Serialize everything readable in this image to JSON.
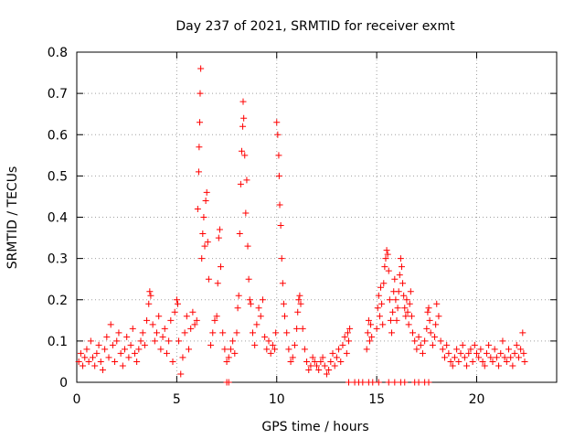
{
  "chart_data": {
    "type": "scatter",
    "title": "Day 237 of 2021, SRMTID for receiver exmt",
    "xlabel": "GPS time / hours",
    "ylabel": "SRMTID / TECUs",
    "xlim": [
      0,
      24
    ],
    "ylim": [
      0,
      0.8
    ],
    "x_ticks": [
      0,
      5,
      10,
      15,
      20
    ],
    "x_tick_labels": [
      "0",
      "5",
      "10",
      "15",
      "20"
    ],
    "y_ticks": [
      0,
      0.1,
      0.2,
      0.3,
      0.4,
      0.5,
      0.6,
      0.7,
      0.8
    ],
    "y_tick_labels": [
      "0",
      "0.1",
      "0.2",
      "0.3",
      "0.4",
      "0.5",
      "0.6",
      "0.7",
      "0.8"
    ],
    "grid": true,
    "marker": "+",
    "color": "#ff0000",
    "series": [
      {
        "name": "SRMTID",
        "points": [
          [
            0.1,
            0.05
          ],
          [
            0.2,
            0.07
          ],
          [
            0.3,
            0.04
          ],
          [
            0.4,
            0.06
          ],
          [
            0.5,
            0.08
          ],
          [
            0.6,
            0.05
          ],
          [
            0.7,
            0.1
          ],
          [
            0.8,
            0.06
          ],
          [
            0.9,
            0.04
          ],
          [
            1.0,
            0.07
          ],
          [
            1.1,
            0.09
          ],
          [
            1.2,
            0.05
          ],
          [
            1.3,
            0.03
          ],
          [
            1.4,
            0.08
          ],
          [
            1.5,
            0.11
          ],
          [
            1.6,
            0.06
          ],
          [
            1.7,
            0.14
          ],
          [
            1.8,
            0.09
          ],
          [
            1.9,
            0.05
          ],
          [
            2.0,
            0.1
          ],
          [
            2.1,
            0.12
          ],
          [
            2.2,
            0.07
          ],
          [
            2.3,
            0.04
          ],
          [
            2.4,
            0.08
          ],
          [
            2.5,
            0.11
          ],
          [
            2.6,
            0.06
          ],
          [
            2.7,
            0.09
          ],
          [
            2.8,
            0.13
          ],
          [
            2.9,
            0.07
          ],
          [
            3.0,
            0.05
          ],
          [
            3.1,
            0.08
          ],
          [
            3.2,
            0.1
          ],
          [
            3.3,
            0.12
          ],
          [
            3.4,
            0.09
          ],
          [
            3.5,
            0.15
          ],
          [
            3.6,
            0.19
          ],
          [
            3.65,
            0.22
          ],
          [
            3.7,
            0.21
          ],
          [
            3.8,
            0.14
          ],
          [
            3.9,
            0.1
          ],
          [
            4.0,
            0.12
          ],
          [
            4.1,
            0.16
          ],
          [
            4.2,
            0.08
          ],
          [
            4.3,
            0.11
          ],
          [
            4.4,
            0.13
          ],
          [
            4.5,
            0.07
          ],
          [
            4.6,
            0.1
          ],
          [
            4.7,
            0.15
          ],
          [
            4.8,
            0.05
          ],
          [
            4.9,
            0.17
          ],
          [
            5.0,
            0.2
          ],
          [
            5.05,
            0.19
          ],
          [
            5.1,
            0.1
          ],
          [
            5.2,
            0.02
          ],
          [
            5.3,
            0.06
          ],
          [
            5.4,
            0.12
          ],
          [
            5.5,
            0.16
          ],
          [
            5.6,
            0.08
          ],
          [
            5.7,
            0.13
          ],
          [
            5.8,
            0.17
          ],
          [
            5.9,
            0.14
          ],
          [
            6.0,
            0.15
          ],
          [
            6.05,
            0.42
          ],
          [
            6.1,
            0.51
          ],
          [
            6.12,
            0.57
          ],
          [
            6.15,
            0.63
          ],
          [
            6.17,
            0.7
          ],
          [
            6.2,
            0.76
          ],
          [
            6.25,
            0.3
          ],
          [
            6.3,
            0.36
          ],
          [
            6.35,
            0.4
          ],
          [
            6.4,
            0.33
          ],
          [
            6.45,
            0.44
          ],
          [
            6.5,
            0.46
          ],
          [
            6.55,
            0.34
          ],
          [
            6.6,
            0.25
          ],
          [
            6.7,
            0.09
          ],
          [
            6.8,
            0.12
          ],
          [
            6.9,
            0.15
          ],
          [
            7.0,
            0.16
          ],
          [
            7.05,
            0.24
          ],
          [
            7.1,
            0.35
          ],
          [
            7.15,
            0.37
          ],
          [
            7.2,
            0.28
          ],
          [
            7.3,
            0.12
          ],
          [
            7.4,
            0.08
          ],
          [
            7.5,
            0.05
          ],
          [
            7.6,
            0.06
          ],
          [
            7.7,
            0.08
          ],
          [
            7.8,
            0.1
          ],
          [
            7.9,
            0.07
          ],
          [
            8.0,
            0.12
          ],
          [
            8.05,
            0.18
          ],
          [
            8.1,
            0.21
          ],
          [
            8.15,
            0.36
          ],
          [
            8.2,
            0.48
          ],
          [
            8.25,
            0.56
          ],
          [
            8.3,
            0.62
          ],
          [
            8.32,
            0.68
          ],
          [
            8.35,
            0.64
          ],
          [
            8.4,
            0.55
          ],
          [
            8.45,
            0.41
          ],
          [
            8.5,
            0.49
          ],
          [
            8.55,
            0.33
          ],
          [
            8.6,
            0.25
          ],
          [
            8.65,
            0.2
          ],
          [
            8.7,
            0.19
          ],
          [
            8.8,
            0.12
          ],
          [
            8.9,
            0.09
          ],
          [
            9.0,
            0.14
          ],
          [
            9.1,
            0.18
          ],
          [
            9.2,
            0.16
          ],
          [
            9.3,
            0.2
          ],
          [
            9.4,
            0.11
          ],
          [
            9.5,
            0.08
          ],
          [
            9.6,
            0.1
          ],
          [
            9.7,
            0.07
          ],
          [
            9.8,
            0.09
          ],
          [
            9.9,
            0.08
          ],
          [
            9.95,
            0.12
          ],
          [
            10.0,
            0.63
          ],
          [
            10.05,
            0.6
          ],
          [
            10.1,
            0.55
          ],
          [
            10.12,
            0.5
          ],
          [
            10.15,
            0.43
          ],
          [
            10.2,
            0.38
          ],
          [
            10.25,
            0.3
          ],
          [
            10.3,
            0.24
          ],
          [
            10.35,
            0.19
          ],
          [
            10.4,
            0.16
          ],
          [
            10.5,
            0.12
          ],
          [
            10.6,
            0.08
          ],
          [
            10.7,
            0.05
          ],
          [
            10.8,
            0.06
          ],
          [
            10.9,
            0.09
          ],
          [
            11.0,
            0.13
          ],
          [
            11.05,
            0.17
          ],
          [
            11.1,
            0.2
          ],
          [
            11.15,
            0.21
          ],
          [
            11.2,
            0.19
          ],
          [
            11.3,
            0.13
          ],
          [
            11.4,
            0.08
          ],
          [
            11.5,
            0.05
          ],
          [
            11.6,
            0.03
          ],
          [
            11.7,
            0.04
          ],
          [
            11.8,
            0.06
          ],
          [
            11.9,
            0.05
          ],
          [
            12.0,
            0.04
          ],
          [
            12.1,
            0.03
          ],
          [
            12.2,
            0.05
          ],
          [
            12.3,
            0.06
          ],
          [
            12.4,
            0.04
          ],
          [
            12.5,
            0.02
          ],
          [
            12.6,
            0.03
          ],
          [
            12.7,
            0.05
          ],
          [
            12.8,
            0.07
          ],
          [
            12.9,
            0.04
          ],
          [
            13.0,
            0.06
          ],
          [
            13.1,
            0.08
          ],
          [
            13.2,
            0.05
          ],
          [
            13.3,
            0.09
          ],
          [
            13.4,
            0.11
          ],
          [
            13.5,
            0.07
          ],
          [
            13.55,
            0.12
          ],
          [
            13.6,
            0.1
          ],
          [
            13.65,
            0.13
          ],
          [
            14.5,
            0.08
          ],
          [
            14.55,
            0.12
          ],
          [
            14.6,
            0.15
          ],
          [
            14.65,
            0.1
          ],
          [
            14.7,
            0.14
          ],
          [
            14.75,
            0.11
          ],
          [
            15.0,
            0.13
          ],
          [
            15.05,
            0.18
          ],
          [
            15.1,
            0.21
          ],
          [
            15.15,
            0.16
          ],
          [
            15.2,
            0.23
          ],
          [
            15.25,
            0.19
          ],
          [
            15.3,
            0.14
          ],
          [
            15.35,
            0.24
          ],
          [
            15.4,
            0.28
          ],
          [
            15.45,
            0.3
          ],
          [
            15.5,
            0.32
          ],
          [
            15.55,
            0.31
          ],
          [
            15.6,
            0.27
          ],
          [
            15.65,
            0.2
          ],
          [
            15.7,
            0.15
          ],
          [
            15.75,
            0.12
          ],
          [
            15.8,
            0.17
          ],
          [
            15.85,
            0.22
          ],
          [
            15.9,
            0.25
          ],
          [
            15.95,
            0.2
          ],
          [
            16.0,
            0.15
          ],
          [
            16.05,
            0.18
          ],
          [
            16.1,
            0.22
          ],
          [
            16.15,
            0.26
          ],
          [
            16.2,
            0.3
          ],
          [
            16.25,
            0.28
          ],
          [
            16.3,
            0.24
          ],
          [
            16.35,
            0.21
          ],
          [
            16.4,
            0.18
          ],
          [
            16.45,
            0.16
          ],
          [
            16.5,
            0.2
          ],
          [
            16.55,
            0.17
          ],
          [
            16.6,
            0.14
          ],
          [
            16.65,
            0.19
          ],
          [
            16.7,
            0.22
          ],
          [
            16.75,
            0.16
          ],
          [
            16.8,
            0.12
          ],
          [
            16.9,
            0.1
          ],
          [
            17.0,
            0.08
          ],
          [
            17.1,
            0.11
          ],
          [
            17.2,
            0.09
          ],
          [
            17.3,
            0.07
          ],
          [
            17.4,
            0.1
          ],
          [
            17.5,
            0.13
          ],
          [
            17.55,
            0.17
          ],
          [
            17.6,
            0.18
          ],
          [
            17.65,
            0.15
          ],
          [
            17.7,
            0.12
          ],
          [
            17.8,
            0.09
          ],
          [
            17.9,
            0.11
          ],
          [
            17.95,
            0.14
          ],
          [
            18.0,
            0.19
          ],
          [
            18.1,
            0.16
          ],
          [
            18.2,
            0.1
          ],
          [
            18.3,
            0.08
          ],
          [
            18.4,
            0.06
          ],
          [
            18.5,
            0.09
          ],
          [
            18.6,
            0.07
          ],
          [
            18.7,
            0.05
          ],
          [
            18.8,
            0.04
          ],
          [
            18.9,
            0.06
          ],
          [
            19.0,
            0.08
          ],
          [
            19.1,
            0.05
          ],
          [
            19.2,
            0.07
          ],
          [
            19.3,
            0.09
          ],
          [
            19.4,
            0.06
          ],
          [
            19.5,
            0.04
          ],
          [
            19.6,
            0.07
          ],
          [
            19.7,
            0.08
          ],
          [
            19.8,
            0.05
          ],
          [
            19.9,
            0.09
          ],
          [
            20.0,
            0.07
          ],
          [
            20.1,
            0.06
          ],
          [
            20.2,
            0.08
          ],
          [
            20.3,
            0.05
          ],
          [
            20.4,
            0.04
          ],
          [
            20.5,
            0.07
          ],
          [
            20.6,
            0.09
          ],
          [
            20.7,
            0.06
          ],
          [
            20.8,
            0.05
          ],
          [
            20.9,
            0.08
          ],
          [
            21.0,
            0.06
          ],
          [
            21.1,
            0.04
          ],
          [
            21.2,
            0.07
          ],
          [
            21.3,
            0.1
          ],
          [
            21.4,
            0.06
          ],
          [
            21.5,
            0.05
          ],
          [
            21.6,
            0.08
          ],
          [
            21.7,
            0.06
          ],
          [
            21.8,
            0.04
          ],
          [
            21.9,
            0.07
          ],
          [
            22.0,
            0.09
          ],
          [
            22.1,
            0.06
          ],
          [
            22.2,
            0.08
          ],
          [
            22.3,
            0.12
          ],
          [
            22.35,
            0.07
          ],
          [
            22.4,
            0.05
          ]
        ]
      }
    ],
    "zero_points_x": [
      7.5,
      7.6,
      13.6,
      13.9,
      14.1,
      14.3,
      14.6,
      14.8,
      15.1,
      15.6,
      15.9,
      16.2,
      16.4,
      16.9,
      17.1,
      17.4,
      17.6
    ]
  }
}
